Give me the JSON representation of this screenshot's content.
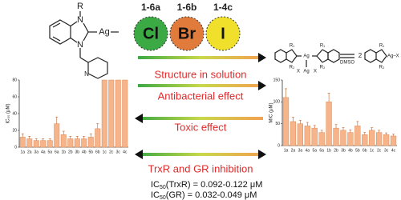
{
  "ligand": {
    "labels": [
      "R",
      "N",
      "N",
      "Ag",
      "N"
    ]
  },
  "halides": [
    {
      "code": "1-6a",
      "symbol": "Cl",
      "color": "#3caa44"
    },
    {
      "code": "1-6b",
      "symbol": "Br",
      "color": "#e07b3c"
    },
    {
      "code": "1-4c",
      "symbol": "I",
      "color": "#f0e02c"
    }
  ],
  "equilibrium": {
    "dimer_labels": [
      "R₁",
      "R₂",
      "Ag",
      "R₁",
      "R₂",
      "X",
      "Ag",
      "X"
    ],
    "solvent": "DMSO",
    "factor": "2",
    "monomer_labels": [
      "R₁",
      "R₂",
      "Ag–X"
    ]
  },
  "arrows": [
    {
      "label": "Structure in solution",
      "direction": "right"
    },
    {
      "label": "Antibacterial effect",
      "direction": "right"
    },
    {
      "label": "Toxic effect",
      "direction": "left"
    },
    {
      "label": "TrxR and GR inhibition",
      "direction": "both"
    }
  ],
  "ic50": [
    {
      "prefix": "IC",
      "sub": "50",
      "rest": "(TrxR) = 0.092-0.122 μM"
    },
    {
      "prefix": "IC",
      "sub": "50",
      "rest": "(GR) = 0.032-0.049 μM"
    }
  ],
  "chart_data": [
    {
      "type": "bar",
      "y_label": "IC₅₀ (μM)",
      "categories": [
        "1a",
        "2a",
        "3a",
        "4a",
        "5a",
        "6a",
        "1b",
        "2b",
        "3b",
        "4b",
        "5b",
        "6b",
        "1c",
        "2c",
        "3c",
        "4c"
      ],
      "values": [
        12,
        10,
        8,
        8,
        8,
        28,
        15,
        10,
        10,
        10,
        12,
        22,
        80,
        80,
        80,
        80
      ],
      "errors": [
        4,
        3,
        2,
        2,
        2,
        8,
        4,
        3,
        3,
        3,
        4,
        6,
        0,
        0,
        0,
        0
      ],
      "color": "#f6b48a",
      "ylim": [
        0,
        80
      ],
      "yticks": [
        0,
        20,
        40,
        60,
        80
      ]
    },
    {
      "type": "bar",
      "y_label": "MIC (μM)",
      "categories": [
        "1a",
        "2a",
        "3a",
        "4a",
        "5a",
        "6a",
        "1b",
        "2b",
        "3b",
        "4b",
        "5b",
        "6b",
        "1c",
        "2c",
        "3c",
        "4c"
      ],
      "values": [
        110,
        55,
        50,
        45,
        40,
        30,
        100,
        40,
        35,
        30,
        45,
        25,
        35,
        30,
        25,
        22
      ],
      "errors": [
        20,
        10,
        8,
        8,
        6,
        5,
        20,
        8,
        6,
        6,
        10,
        5,
        6,
        5,
        4,
        4
      ],
      "color": "#f6b48a",
      "ylim": [
        0,
        150
      ],
      "yticks": [
        0,
        50,
        100,
        150
      ]
    }
  ]
}
